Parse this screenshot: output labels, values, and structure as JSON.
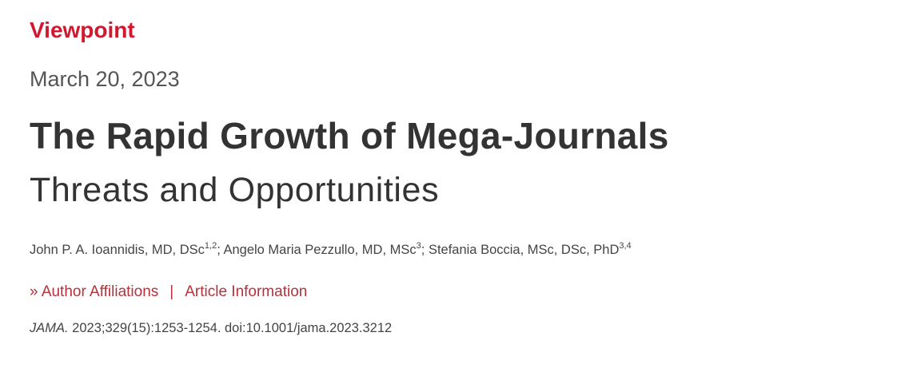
{
  "article_type": "Viewpoint",
  "date": "March 20, 2023",
  "title": "The Rapid Growth of Mega-Journals",
  "subtitle": "Threats and Opportunities",
  "authors": [
    {
      "name": "John P. A. Ioannidis, MD, DSc",
      "affiliations": "1,2"
    },
    {
      "name": "Angelo Maria Pezzullo, MD, MSc",
      "affiliations": "3"
    },
    {
      "name": "Stefania Boccia, MSc, DSc, PhD",
      "affiliations": "3,4"
    }
  ],
  "author_separator": "; ",
  "links": {
    "chevron": "»",
    "affiliations": "Author Affiliations",
    "separator": "|",
    "article_info": "Article Information"
  },
  "citation": {
    "journal": "JAMA.",
    "details": " 2023;329(15):1253-1254. doi:10.1001/jama.2023.3212"
  },
  "colors": {
    "accent": "#d3172e",
    "link": "#b5313b",
    "text": "#333333"
  }
}
